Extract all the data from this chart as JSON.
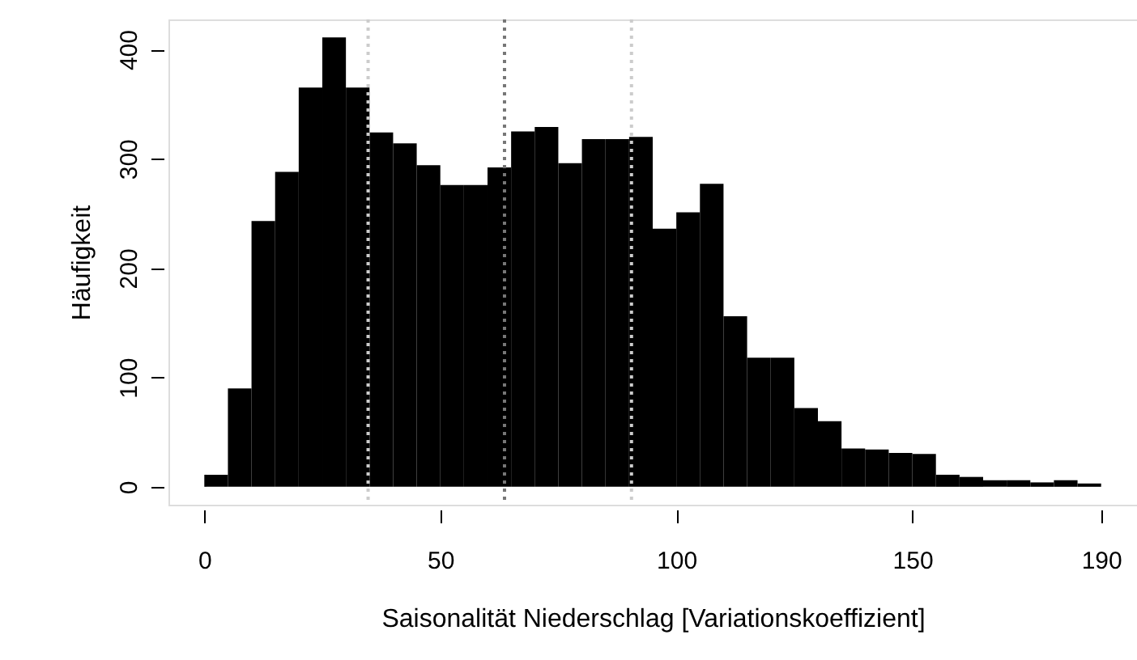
{
  "chart_data": {
    "type": "histogram",
    "xlabel": "Saisonalität Niederschlag [Variationskoeffizient]",
    "ylabel": "Häufigkeit",
    "bins": [
      0,
      5,
      10,
      15,
      20,
      25,
      30,
      35,
      40,
      45,
      50,
      55,
      60,
      65,
      70,
      75,
      80,
      85,
      90,
      95,
      100,
      105,
      110,
      115,
      120,
      125,
      130,
      135,
      140,
      145,
      150,
      155,
      160,
      165,
      170,
      175,
      180,
      185,
      190
    ],
    "values": [
      11,
      90,
      243,
      288,
      365,
      411,
      365,
      324,
      314,
      294,
      276,
      276,
      292,
      325,
      329,
      296,
      318,
      318,
      320,
      236,
      251,
      277,
      156,
      118,
      118,
      72,
      60,
      35,
      34,
      31,
      30,
      11,
      9,
      6,
      6,
      4,
      6,
      3
    ],
    "color": "#000000",
    "xlim": [
      -7.6,
      197.6
    ],
    "ylim": [
      -16.4,
      427.4
    ],
    "xticks": [
      0,
      50,
      100,
      150,
      190
    ],
    "yticks": [
      0,
      100,
      200,
      300,
      400
    ],
    "grid": false,
    "ref_lines": [
      {
        "axis": "x",
        "value": 34.7,
        "color": "#cccccc",
        "line_style": "dotted"
      },
      {
        "axis": "x",
        "value": 63.6,
        "color": "#777777",
        "line_style": "dotted"
      },
      {
        "axis": "x",
        "value": 90.5,
        "color": "#cccccc",
        "line_style": "dotted"
      }
    ]
  }
}
